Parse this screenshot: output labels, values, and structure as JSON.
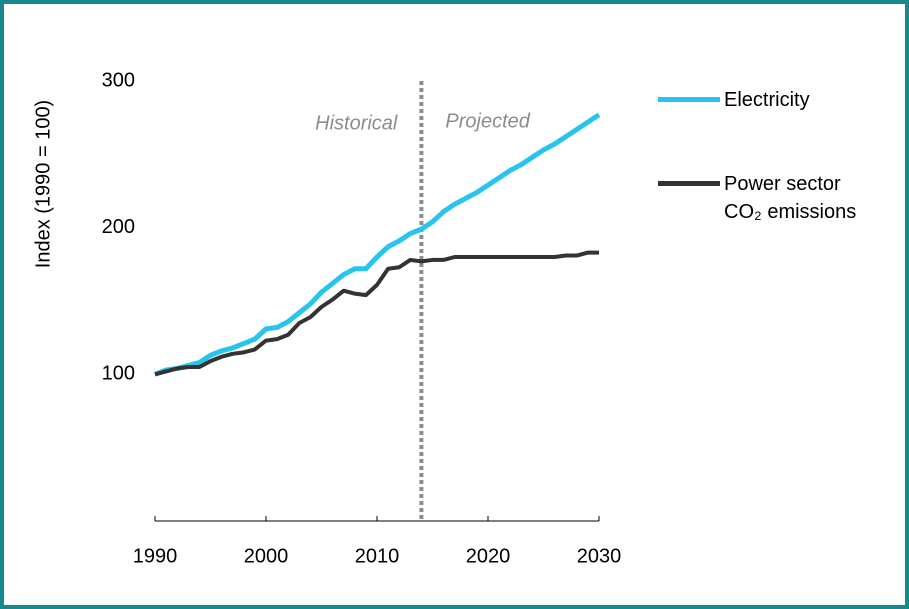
{
  "chart_data": {
    "type": "line",
    "y_label": "Index (1990 = 100)",
    "annotations": [
      "Historical",
      "Projected"
    ],
    "divider_x": 2014,
    "x": [
      1990,
      1991,
      1992,
      1993,
      1994,
      1995,
      1996,
      1997,
      1998,
      1999,
      2000,
      2001,
      2002,
      2003,
      2004,
      2005,
      2006,
      2007,
      2008,
      2009,
      2010,
      2011,
      2012,
      2013,
      2014,
      2015,
      2016,
      2017,
      2018,
      2019,
      2020,
      2021,
      2022,
      2023,
      2024,
      2025,
      2026,
      2027,
      2028,
      2029,
      2030
    ],
    "series": [
      {
        "name": "Electricity",
        "color": "#29c4ee",
        "values": [
          100,
          103,
          104,
          106,
          108,
          113,
          116,
          118,
          121,
          124,
          131,
          132,
          136,
          142,
          148,
          156,
          162,
          168,
          172,
          172,
          180,
          187,
          191,
          196,
          199,
          204,
          211,
          216,
          220,
          224,
          229,
          234,
          239,
          243,
          248,
          253,
          257,
          262,
          267,
          272,
          277
        ]
      },
      {
        "name": "Power sector CO₂ emissions",
        "color": "#333333",
        "values": [
          100,
          102,
          104,
          105,
          105,
          109,
          112,
          114,
          115,
          117,
          123,
          124,
          127,
          135,
          139,
          146,
          151,
          157,
          155,
          154,
          161,
          172,
          173,
          178,
          177,
          178,
          178,
          180,
          180,
          180,
          180,
          180,
          180,
          180,
          180,
          180,
          180,
          181,
          181,
          183,
          183
        ]
      }
    ],
    "xlim": [
      1990,
      2030
    ],
    "xticks": [
      1990,
      2000,
      2010,
      2020,
      2030
    ],
    "ylim": [
      0,
      300
    ],
    "yticks": [
      100,
      200,
      300
    ]
  }
}
